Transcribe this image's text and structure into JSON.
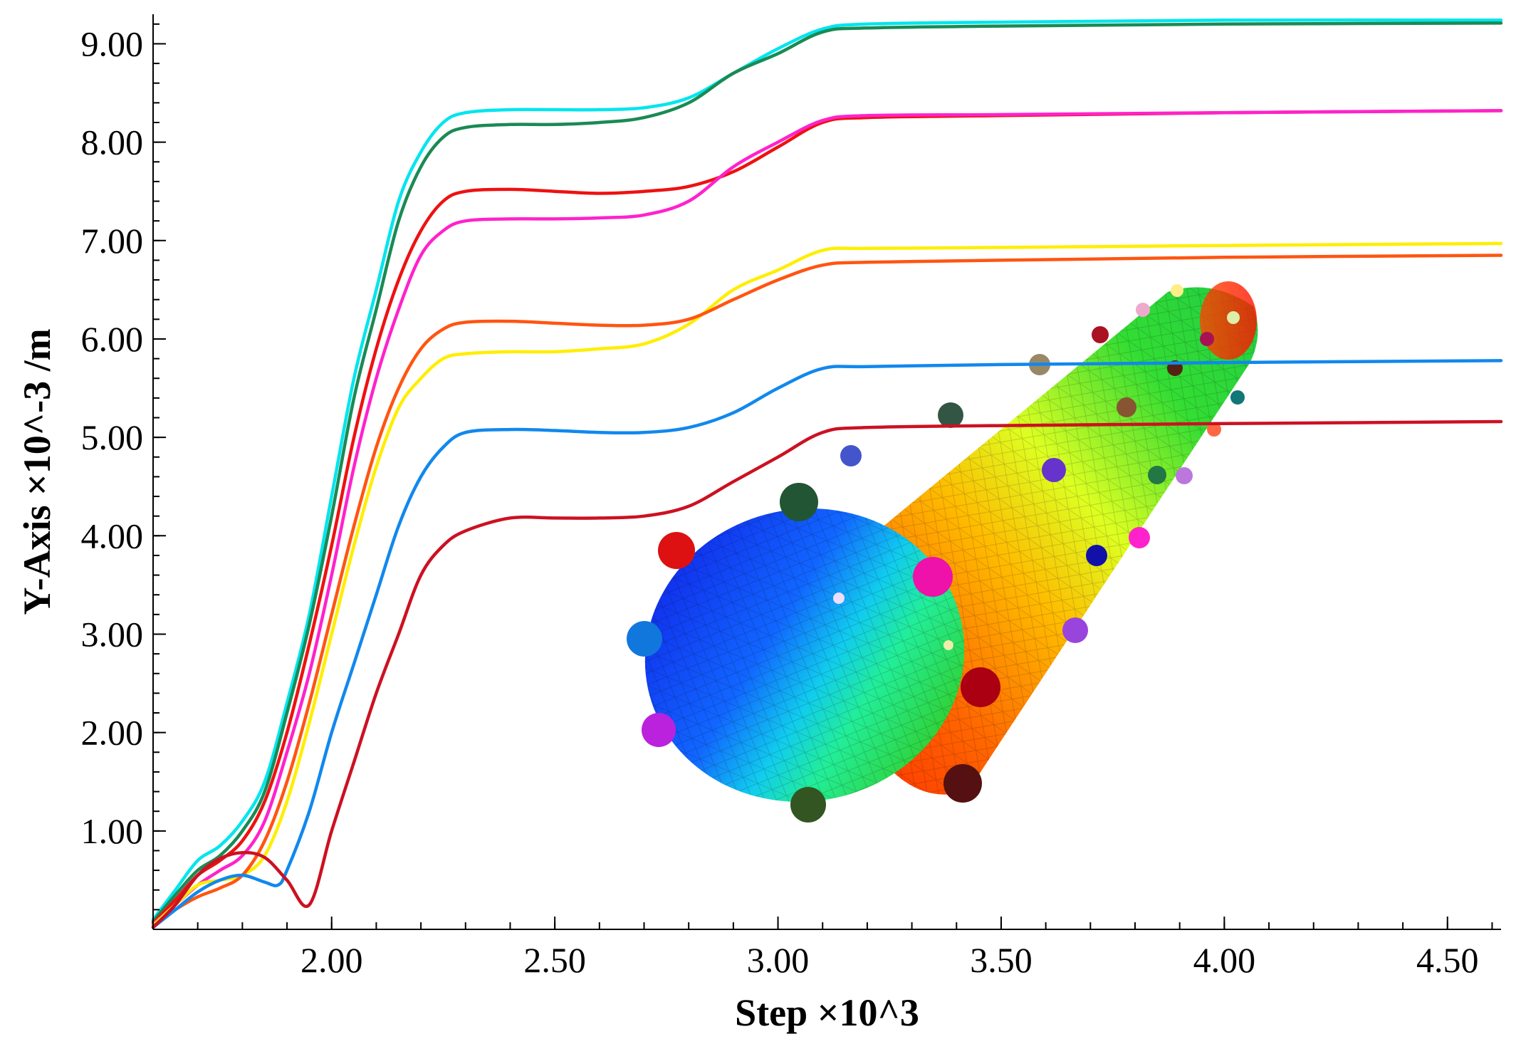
{
  "chart_data": {
    "type": "line",
    "title": "",
    "xlabel": "Step ×10^3",
    "ylabel": "Y-Axis ×10^-3 /m",
    "xlim": [
      1.6,
      4.62
    ],
    "ylim": [
      0.0,
      9.3
    ],
    "xticks": [
      2.0,
      2.5,
      3.0,
      3.5,
      4.0,
      4.5
    ],
    "xtick_labels": [
      "2.00",
      "2.50",
      "3.00",
      "3.50",
      "4.00",
      "4.50"
    ],
    "yticks": [
      1.0,
      2.0,
      3.0,
      4.0,
      5.0,
      6.0,
      7.0,
      8.0,
      9.0
    ],
    "ytick_labels": [
      "1.00",
      "2.00",
      "3.00",
      "4.00",
      "5.00",
      "6.00",
      "7.00",
      "8.00",
      "9.00"
    ],
    "x_minor_step": 0.1,
    "y_minor_step": 0.2,
    "grid": false,
    "legend": "none",
    "inset": "3D cylinder mesh with color contour and marker spheres (illustration)",
    "series": [
      {
        "name": "cyan",
        "color": "#00e5ee",
        "points": [
          [
            1.6,
            0.1
          ],
          [
            1.65,
            0.4
          ],
          [
            1.7,
            0.7
          ],
          [
            1.75,
            0.85
          ],
          [
            1.8,
            1.1
          ],
          [
            1.85,
            1.5
          ],
          [
            1.9,
            2.3
          ],
          [
            1.95,
            3.2
          ],
          [
            2.0,
            4.4
          ],
          [
            2.05,
            5.6
          ],
          [
            2.1,
            6.5
          ],
          [
            2.15,
            7.4
          ],
          [
            2.2,
            7.9
          ],
          [
            2.25,
            8.2
          ],
          [
            2.3,
            8.3
          ],
          [
            2.4,
            8.33
          ],
          [
            2.5,
            8.33
          ],
          [
            2.6,
            8.33
          ],
          [
            2.7,
            8.35
          ],
          [
            2.8,
            8.45
          ],
          [
            2.9,
            8.7
          ],
          [
            3.0,
            8.95
          ],
          [
            3.1,
            9.15
          ],
          [
            3.2,
            9.2
          ],
          [
            3.5,
            9.22
          ],
          [
            4.0,
            9.24
          ],
          [
            4.62,
            9.24
          ]
        ]
      },
      {
        "name": "dark green",
        "color": "#1a8a55",
        "points": [
          [
            1.6,
            0.08
          ],
          [
            1.65,
            0.35
          ],
          [
            1.7,
            0.6
          ],
          [
            1.75,
            0.75
          ],
          [
            1.8,
            1.0
          ],
          [
            1.85,
            1.4
          ],
          [
            1.9,
            2.2
          ],
          [
            1.95,
            3.1
          ],
          [
            2.0,
            4.2
          ],
          [
            2.05,
            5.4
          ],
          [
            2.1,
            6.3
          ],
          [
            2.15,
            7.2
          ],
          [
            2.2,
            7.75
          ],
          [
            2.25,
            8.05
          ],
          [
            2.3,
            8.15
          ],
          [
            2.4,
            8.18
          ],
          [
            2.5,
            8.18
          ],
          [
            2.6,
            8.2
          ],
          [
            2.7,
            8.25
          ],
          [
            2.8,
            8.4
          ],
          [
            2.9,
            8.7
          ],
          [
            3.0,
            8.9
          ],
          [
            3.1,
            9.12
          ],
          [
            3.2,
            9.16
          ],
          [
            3.5,
            9.18
          ],
          [
            4.0,
            9.2
          ],
          [
            4.62,
            9.21
          ]
        ]
      },
      {
        "name": "red",
        "color": "#ee1111",
        "points": [
          [
            1.6,
            0.06
          ],
          [
            1.65,
            0.3
          ],
          [
            1.7,
            0.55
          ],
          [
            1.75,
            0.7
          ],
          [
            1.8,
            0.9
          ],
          [
            1.85,
            1.3
          ],
          [
            1.9,
            2.0
          ],
          [
            1.95,
            2.9
          ],
          [
            2.0,
            3.9
          ],
          [
            2.05,
            5.0
          ],
          [
            2.1,
            5.9
          ],
          [
            2.15,
            6.6
          ],
          [
            2.2,
            7.1
          ],
          [
            2.25,
            7.4
          ],
          [
            2.3,
            7.5
          ],
          [
            2.4,
            7.52
          ],
          [
            2.5,
            7.5
          ],
          [
            2.6,
            7.48
          ],
          [
            2.7,
            7.5
          ],
          [
            2.8,
            7.55
          ],
          [
            2.9,
            7.7
          ],
          [
            3.0,
            7.95
          ],
          [
            3.1,
            8.2
          ],
          [
            3.2,
            8.25
          ],
          [
            3.5,
            8.27
          ],
          [
            4.0,
            8.3
          ],
          [
            4.62,
            8.32
          ]
        ]
      },
      {
        "name": "magenta",
        "color": "#ff22cc",
        "points": [
          [
            1.6,
            0.05
          ],
          [
            1.65,
            0.25
          ],
          [
            1.7,
            0.45
          ],
          [
            1.75,
            0.6
          ],
          [
            1.8,
            0.75
          ],
          [
            1.85,
            1.1
          ],
          [
            1.9,
            1.8
          ],
          [
            1.95,
            2.6
          ],
          [
            2.0,
            3.6
          ],
          [
            2.05,
            4.7
          ],
          [
            2.1,
            5.6
          ],
          [
            2.15,
            6.3
          ],
          [
            2.2,
            6.85
          ],
          [
            2.25,
            7.1
          ],
          [
            2.3,
            7.2
          ],
          [
            2.4,
            7.22
          ],
          [
            2.5,
            7.22
          ],
          [
            2.6,
            7.23
          ],
          [
            2.7,
            7.26
          ],
          [
            2.8,
            7.4
          ],
          [
            2.9,
            7.75
          ],
          [
            3.0,
            8.0
          ],
          [
            3.1,
            8.22
          ],
          [
            3.2,
            8.27
          ],
          [
            3.5,
            8.28
          ],
          [
            4.0,
            8.3
          ],
          [
            4.62,
            8.32
          ]
        ]
      },
      {
        "name": "yellow",
        "color": "#ffee00",
        "points": [
          [
            1.6,
            0.04
          ],
          [
            1.65,
            0.25
          ],
          [
            1.7,
            0.45
          ],
          [
            1.75,
            0.5
          ],
          [
            1.8,
            0.55
          ],
          [
            1.85,
            0.75
          ],
          [
            1.9,
            1.3
          ],
          [
            1.95,
            2.1
          ],
          [
            2.0,
            3.0
          ],
          [
            2.05,
            3.9
          ],
          [
            2.1,
            4.7
          ],
          [
            2.15,
            5.3
          ],
          [
            2.2,
            5.6
          ],
          [
            2.25,
            5.8
          ],
          [
            2.3,
            5.85
          ],
          [
            2.4,
            5.87
          ],
          [
            2.5,
            5.87
          ],
          [
            2.6,
            5.9
          ],
          [
            2.7,
            5.95
          ],
          [
            2.8,
            6.15
          ],
          [
            2.9,
            6.5
          ],
          [
            3.0,
            6.7
          ],
          [
            3.1,
            6.9
          ],
          [
            3.2,
            6.92
          ],
          [
            3.5,
            6.93
          ],
          [
            4.0,
            6.95
          ],
          [
            4.62,
            6.97
          ]
        ]
      },
      {
        "name": "orange-red",
        "color": "#ff5511",
        "points": [
          [
            1.6,
            0.03
          ],
          [
            1.65,
            0.2
          ],
          [
            1.7,
            0.33
          ],
          [
            1.75,
            0.42
          ],
          [
            1.8,
            0.55
          ],
          [
            1.85,
            0.9
          ],
          [
            1.9,
            1.5
          ],
          [
            1.95,
            2.3
          ],
          [
            2.0,
            3.2
          ],
          [
            2.05,
            4.1
          ],
          [
            2.1,
            4.9
          ],
          [
            2.15,
            5.5
          ],
          [
            2.2,
            5.9
          ],
          [
            2.25,
            6.1
          ],
          [
            2.3,
            6.17
          ],
          [
            2.4,
            6.18
          ],
          [
            2.5,
            6.16
          ],
          [
            2.6,
            6.14
          ],
          [
            2.7,
            6.14
          ],
          [
            2.8,
            6.2
          ],
          [
            2.9,
            6.4
          ],
          [
            3.0,
            6.6
          ],
          [
            3.1,
            6.75
          ],
          [
            3.2,
            6.78
          ],
          [
            3.5,
            6.8
          ],
          [
            4.0,
            6.83
          ],
          [
            4.62,
            6.85
          ]
        ]
      },
      {
        "name": "blue",
        "color": "#1188ee",
        "points": [
          [
            1.6,
            0.02
          ],
          [
            1.65,
            0.2
          ],
          [
            1.7,
            0.38
          ],
          [
            1.75,
            0.5
          ],
          [
            1.8,
            0.55
          ],
          [
            1.85,
            0.48
          ],
          [
            1.88,
            0.45
          ],
          [
            1.9,
            0.6
          ],
          [
            1.95,
            1.2
          ],
          [
            2.0,
            2.0
          ],
          [
            2.05,
            2.7
          ],
          [
            2.1,
            3.4
          ],
          [
            2.15,
            4.1
          ],
          [
            2.2,
            4.6
          ],
          [
            2.25,
            4.9
          ],
          [
            2.3,
            5.05
          ],
          [
            2.4,
            5.08
          ],
          [
            2.5,
            5.07
          ],
          [
            2.6,
            5.05
          ],
          [
            2.7,
            5.05
          ],
          [
            2.8,
            5.1
          ],
          [
            2.9,
            5.25
          ],
          [
            3.0,
            5.5
          ],
          [
            3.1,
            5.7
          ],
          [
            3.2,
            5.72
          ],
          [
            3.5,
            5.74
          ],
          [
            4.0,
            5.76
          ],
          [
            4.62,
            5.78
          ]
        ]
      },
      {
        "name": "dark red",
        "color": "#cc1122",
        "points": [
          [
            1.6,
            0.02
          ],
          [
            1.65,
            0.25
          ],
          [
            1.7,
            0.55
          ],
          [
            1.75,
            0.72
          ],
          [
            1.8,
            0.78
          ],
          [
            1.85,
            0.73
          ],
          [
            1.9,
            0.5
          ],
          [
            1.95,
            0.25
          ],
          [
            2.0,
            1.0
          ],
          [
            2.05,
            1.7
          ],
          [
            2.1,
            2.4
          ],
          [
            2.15,
            3.0
          ],
          [
            2.2,
            3.6
          ],
          [
            2.25,
            3.9
          ],
          [
            2.3,
            4.05
          ],
          [
            2.4,
            4.18
          ],
          [
            2.5,
            4.18
          ],
          [
            2.6,
            4.18
          ],
          [
            2.7,
            4.2
          ],
          [
            2.8,
            4.3
          ],
          [
            2.9,
            4.55
          ],
          [
            3.0,
            4.8
          ],
          [
            3.1,
            5.05
          ],
          [
            3.2,
            5.1
          ],
          [
            3.5,
            5.12
          ],
          [
            4.0,
            5.14
          ],
          [
            4.62,
            5.16
          ]
        ]
      }
    ]
  }
}
